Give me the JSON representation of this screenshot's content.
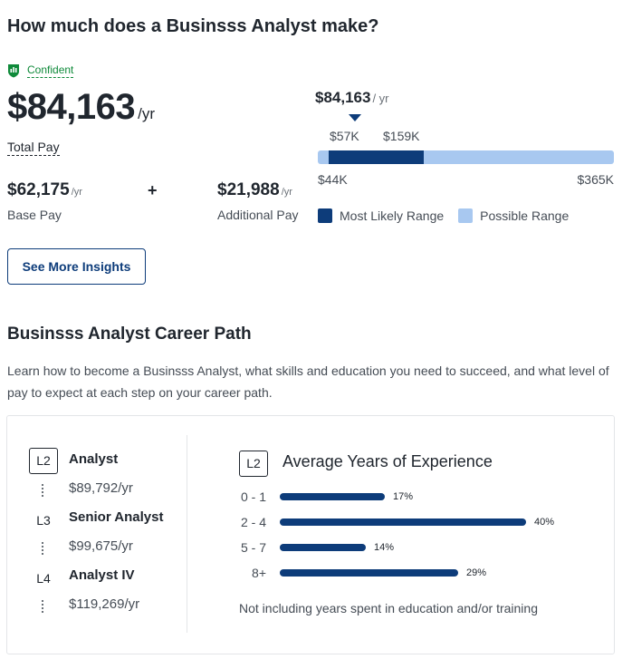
{
  "header": {
    "title": "How much does a Businsss Analyst make?"
  },
  "confidence": {
    "label": "Confident",
    "icon": "confidence-shield-icon",
    "color": "#0f8a3a"
  },
  "total_pay": {
    "amount": "$84,163",
    "unit": "/yr",
    "label": "Total Pay"
  },
  "base_pay": {
    "amount": "$62,175",
    "unit": "/yr",
    "label": "Base Pay"
  },
  "plus_sign": "+",
  "additional_pay": {
    "amount": "$21,988",
    "unit": "/yr",
    "label": "Additional Pay"
  },
  "pay_range": {
    "median": "$84,163",
    "median_unit": "/ yr",
    "likely_low": "$57K",
    "likely_high": "$159K",
    "min": "$44K",
    "max": "$365K",
    "min_value": 44,
    "max_value": 365,
    "likely_low_value": 57,
    "likely_high_value": 159,
    "legend": {
      "likely": "Most Likely Range",
      "possible": "Possible Range"
    },
    "colors": {
      "likely": "#0d3c7a",
      "possible": "#a8c8f0"
    }
  },
  "insights_button": "See More Insights",
  "career": {
    "title": "Businsss Analyst Career Path",
    "description": "Learn how to become a Businsss Analyst, what skills and education you need to succeed, and what level of pay to expect at each step on your career path.",
    "levels": [
      {
        "level": "L2",
        "title": "Analyst",
        "salary": "$89,792/yr"
      },
      {
        "level": "L3",
        "title": "Senior Analyst",
        "salary": "$99,675/yr"
      },
      {
        "level": "L4",
        "title": "Analyst IV",
        "salary": "$119,269/yr"
      }
    ],
    "experience": {
      "level": "L2",
      "title": "Average Years of Experience",
      "rows": [
        {
          "years": "0 - 1",
          "percent": 17,
          "label": "17%"
        },
        {
          "years": "2 - 4",
          "percent": 40,
          "label": "40%"
        },
        {
          "years": "5 - 7",
          "percent": 14,
          "label": "14%"
        },
        {
          "years": "8+",
          "percent": 29,
          "label": "29%"
        }
      ],
      "note": "Not including years spent in education and/or training"
    }
  }
}
